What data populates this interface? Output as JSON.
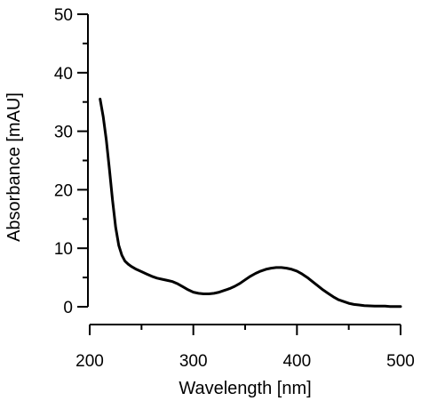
{
  "chart_data": {
    "type": "line",
    "xlabel": "Wavelength [nm]",
    "ylabel": "Absorbance [mAU]",
    "xlim": [
      200,
      500
    ],
    "ylim": [
      0,
      50
    ],
    "x_ticks": [
      200,
      300,
      400,
      500
    ],
    "x_minor_ticks": [
      250,
      350,
      450
    ],
    "y_ticks": [
      0,
      10,
      20,
      30,
      40,
      50
    ],
    "y_minor_ticks": [
      5,
      15,
      25,
      35,
      45
    ],
    "grid": false,
    "series": [
      {
        "color": "#000000",
        "x": [
          210,
          213,
          216,
          219,
          222,
          225,
          228,
          231,
          234,
          237,
          240,
          245,
          250,
          255,
          260,
          265,
          270,
          275,
          280,
          285,
          290,
          295,
          300,
          305,
          310,
          315,
          320,
          325,
          330,
          335,
          340,
          345,
          350,
          355,
          360,
          365,
          370,
          375,
          380,
          385,
          390,
          395,
          400,
          405,
          410,
          415,
          420,
          425,
          430,
          435,
          440,
          445,
          450,
          455,
          460,
          465,
          470,
          475,
          480,
          485,
          490,
          495,
          500
        ],
        "y": [
          35.5,
          32.5,
          28.5,
          23.5,
          18.2,
          13.6,
          10.5,
          8.8,
          7.8,
          7.3,
          6.9,
          6.4,
          6.0,
          5.6,
          5.2,
          4.9,
          4.7,
          4.5,
          4.3,
          3.9,
          3.4,
          2.9,
          2.5,
          2.3,
          2.2,
          2.2,
          2.3,
          2.5,
          2.8,
          3.1,
          3.5,
          4.0,
          4.6,
          5.2,
          5.7,
          6.1,
          6.4,
          6.6,
          6.7,
          6.7,
          6.6,
          6.4,
          6.1,
          5.6,
          5.0,
          4.3,
          3.6,
          2.9,
          2.3,
          1.7,
          1.2,
          0.9,
          0.6,
          0.4,
          0.3,
          0.2,
          0.15,
          0.1,
          0.1,
          0.1,
          0.05,
          0.05,
          0.05
        ]
      }
    ]
  }
}
